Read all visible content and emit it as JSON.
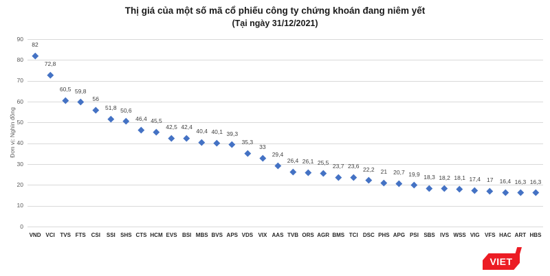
{
  "chart_data": {
    "type": "scatter",
    "title": "Thị giá của một số mã cổ phiếu công ty chứng khoán đang niêm yết",
    "subtitle": "(Tại ngày 31/12/2021)",
    "ylabel": "Đơn vị: Nghìn đồng",
    "xlabel": "",
    "ylim": [
      0,
      90
    ],
    "ytick_step": 10,
    "grid": true,
    "legend": "none",
    "marker": "diamond",
    "marker_color": "#4472C4",
    "categories": [
      "VND",
      "VCI",
      "TVS",
      "FTS",
      "CSI",
      "SSI",
      "SHS",
      "CTS",
      "HCM",
      "EVS",
      "BSI",
      "MBS",
      "BVS",
      "APS",
      "VDS",
      "VIX",
      "AAS",
      "TVB",
      "ORS",
      "AGR",
      "BMS",
      "TCI",
      "DSC",
      "PHS",
      "APG",
      "PSI",
      "SBS",
      "IVS",
      "WSS",
      "VIG",
      "VFS",
      "HAC",
      "ART",
      "HBS"
    ],
    "values": [
      82,
      72.8,
      60.5,
      59.8,
      56,
      51.8,
      50.6,
      46.4,
      45.5,
      42.5,
      42.4,
      40.4,
      40.1,
      39.3,
      35.3,
      33,
      29.4,
      26.4,
      26.1,
      25.5,
      23.7,
      23.6,
      22.2,
      21,
      20.7,
      19.9,
      18.3,
      18.2,
      18.1,
      17.4,
      17,
      16.4,
      16.3,
      16.3
    ],
    "value_labels": [
      "82",
      "72,8",
      "60,5",
      "59,8",
      "56",
      "51,8",
      "50,6",
      "46,4",
      "45,5",
      "42,5",
      "42,4",
      "40,4",
      "40,1",
      "39,3",
      "35,3",
      "33",
      "29,4",
      "26,4",
      "26,1",
      "25,5",
      "23,7",
      "23,6",
      "22,2",
      "21",
      "20,7",
      "19,9",
      "18,3",
      "18,2",
      "18,1",
      "17,4",
      "17",
      "16,4",
      "16,3",
      "16,3"
    ]
  },
  "logo": {
    "text": "VIET",
    "bg_color": "#EC1C24",
    "text_color": "#FFFFFF"
  },
  "colors": {
    "grid": "#D9D9D9",
    "axis_text": "#595959",
    "data_label": "#404040",
    "x_label": "#262626",
    "title": "#1A1A1A"
  }
}
